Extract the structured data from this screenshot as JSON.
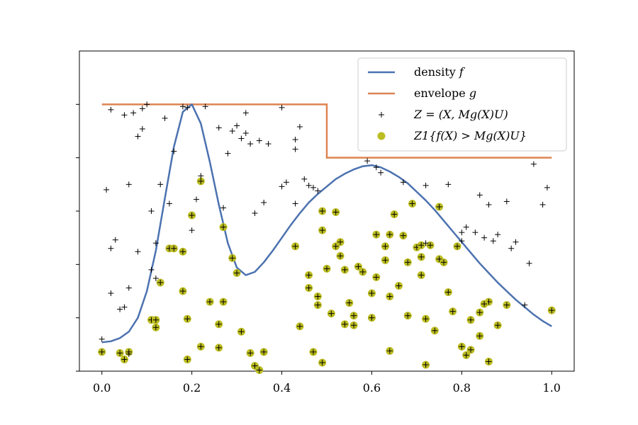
{
  "chart_data": {
    "type": "scatter",
    "title": "",
    "xlabel": "",
    "ylabel": "",
    "xlim": [
      -0.05,
      1.05
    ],
    "ylim": [
      0,
      3.0
    ],
    "x_ticks": [
      0.0,
      0.2,
      0.4,
      0.6,
      0.8,
      1.0
    ],
    "x_tick_labels": [
      "0.0",
      "0.2",
      "0.4",
      "0.6",
      "0.8",
      "1.0"
    ],
    "y_ticks": [
      0.0,
      0.5,
      1.0,
      1.5,
      2.0,
      2.5
    ],
    "grid": false,
    "legend_position": "top-right",
    "colors": {
      "density": "#4c72b0",
      "envelope": "#dd8452",
      "points": "#000000",
      "accepted": "#bcbd22"
    },
    "series": [
      {
        "name": "density f",
        "kind": "line",
        "x": [
          0.0,
          0.02,
          0.04,
          0.06,
          0.08,
          0.1,
          0.12,
          0.14,
          0.16,
          0.18,
          0.2,
          0.22,
          0.24,
          0.26,
          0.28,
          0.3,
          0.32,
          0.34,
          0.36,
          0.38,
          0.4,
          0.42,
          0.44,
          0.46,
          0.48,
          0.5,
          0.52,
          0.54,
          0.56,
          0.58,
          0.6,
          0.62,
          0.64,
          0.66,
          0.68,
          0.7,
          0.72,
          0.74,
          0.76,
          0.78,
          0.8,
          0.82,
          0.84,
          0.86,
          0.88,
          0.9,
          0.92,
          0.94,
          0.96,
          0.98,
          1.0
        ],
        "y": [
          0.27,
          0.28,
          0.31,
          0.37,
          0.5,
          0.75,
          1.13,
          1.62,
          2.1,
          2.43,
          2.5,
          2.32,
          1.96,
          1.56,
          1.2,
          0.97,
          0.9,
          0.93,
          1.02,
          1.13,
          1.25,
          1.37,
          1.48,
          1.58,
          1.66,
          1.73,
          1.8,
          1.85,
          1.89,
          1.92,
          1.93,
          1.91,
          1.87,
          1.82,
          1.76,
          1.68,
          1.6,
          1.51,
          1.41,
          1.31,
          1.21,
          1.11,
          1.01,
          0.92,
          0.83,
          0.75,
          0.67,
          0.6,
          0.53,
          0.47,
          0.42
        ]
      },
      {
        "name": "envelope g",
        "kind": "step",
        "x": [
          0.0,
          0.5,
          0.5,
          1.0
        ],
        "y": [
          2.5,
          2.5,
          2.0,
          2.0
        ]
      },
      {
        "name": "Z = (X, Mg(X)U)",
        "kind": "scatter",
        "marker": "+",
        "points": [
          [
            0.0,
            0.3
          ],
          [
            0.01,
            1.7
          ],
          [
            0.02,
            2.45
          ],
          [
            0.02,
            1.15
          ],
          [
            0.02,
            0.73
          ],
          [
            0.03,
            1.23
          ],
          [
            0.04,
            0.58
          ],
          [
            0.05,
            0.6
          ],
          [
            0.05,
            2.4
          ],
          [
            0.06,
            1.75
          ],
          [
            0.06,
            0.78
          ],
          [
            0.06,
            0.16
          ],
          [
            0.07,
            2.42
          ],
          [
            0.08,
            1.12
          ],
          [
            0.08,
            2.2
          ],
          [
            0.09,
            2.46
          ],
          [
            0.09,
            2.27
          ],
          [
            0.1,
            2.5
          ],
          [
            0.11,
            1.5
          ],
          [
            0.11,
            0.95
          ],
          [
            0.12,
            1.2
          ],
          [
            0.12,
            0.87
          ],
          [
            0.13,
            1.75
          ],
          [
            0.14,
            2.37
          ],
          [
            0.15,
            1.57
          ],
          [
            0.16,
            2.06
          ],
          [
            0.18,
            2.48
          ],
          [
            0.19,
            2.47
          ],
          [
            0.2,
            1.32
          ],
          [
            0.21,
            1.61
          ],
          [
            0.22,
            1.83
          ],
          [
            0.23,
            2.48
          ],
          [
            0.26,
            2.28
          ],
          [
            0.27,
            1.53
          ],
          [
            0.28,
            2.04
          ],
          [
            0.29,
            2.25
          ],
          [
            0.3,
            2.3
          ],
          [
            0.31,
            2.18
          ],
          [
            0.32,
            2.42
          ],
          [
            0.32,
            2.23
          ],
          [
            0.33,
            2.13
          ],
          [
            0.34,
            1.48
          ],
          [
            0.35,
            2.16
          ],
          [
            0.36,
            1.58
          ],
          [
            0.37,
            2.13
          ],
          [
            0.4,
            2.47
          ],
          [
            0.4,
            1.73
          ],
          [
            0.41,
            1.77
          ],
          [
            0.43,
            1.57
          ],
          [
            0.43,
            2.08
          ],
          [
            0.43,
            2.17
          ],
          [
            0.44,
            2.29
          ],
          [
            0.45,
            1.8
          ],
          [
            0.46,
            1.74
          ],
          [
            0.47,
            1.72
          ],
          [
            0.48,
            1.69
          ],
          [
            0.59,
            1.97
          ],
          [
            0.61,
            1.91
          ],
          [
            0.62,
            1.86
          ],
          [
            0.67,
            1.77
          ],
          [
            0.72,
            1.74
          ],
          [
            0.77,
            1.75
          ],
          [
            0.8,
            1.22
          ],
          [
            0.81,
            1.35
          ],
          [
            0.84,
            1.65
          ],
          [
            0.86,
            1.56
          ],
          [
            0.87,
            1.22
          ],
          [
            0.9,
            1.59
          ],
          [
            0.91,
            1.15
          ],
          [
            0.92,
            1.21
          ],
          [
            0.94,
            0.62
          ],
          [
            0.95,
            1.01
          ],
          [
            0.96,
            1.94
          ],
          [
            0.98,
            1.56
          ],
          [
            0.99,
            1.72
          ],
          [
            0.72,
            1.2
          ],
          [
            0.8,
            1.3
          ],
          [
            0.85,
            1.25
          ],
          [
            0.88,
            1.28
          ],
          [
            0.83,
            1.3
          ]
        ]
      },
      {
        "name": "Z1{f(X) > Mg(X)U}",
        "kind": "scatter",
        "marker": "o",
        "points": [
          [
            0.0,
            0.18
          ],
          [
            0.04,
            0.17
          ],
          [
            0.05,
            0.11
          ],
          [
            0.06,
            0.18
          ],
          [
            0.11,
            0.48
          ],
          [
            0.12,
            0.48
          ],
          [
            0.12,
            0.41
          ],
          [
            0.13,
            0.83
          ],
          [
            0.15,
            1.15
          ],
          [
            0.16,
            1.15
          ],
          [
            0.18,
            1.12
          ],
          [
            0.18,
            0.75
          ],
          [
            0.19,
            0.11
          ],
          [
            0.19,
            0.49
          ],
          [
            0.2,
            1.46
          ],
          [
            0.22,
            1.78
          ],
          [
            0.22,
            0.23
          ],
          [
            0.24,
            0.65
          ],
          [
            0.26,
            0.44
          ],
          [
            0.26,
            0.22
          ],
          [
            0.27,
            1.35
          ],
          [
            0.27,
            0.65
          ],
          [
            0.3,
            0.92
          ],
          [
            0.31,
            0.37
          ],
          [
            0.33,
            0.17
          ],
          [
            0.34,
            0.05
          ],
          [
            0.35,
            0.01
          ],
          [
            0.36,
            0.18
          ],
          [
            0.44,
            0.42
          ],
          [
            0.46,
            0.9
          ],
          [
            0.46,
            0.78
          ],
          [
            0.47,
            0.18
          ],
          [
            0.48,
            0.7
          ],
          [
            0.48,
            0.62
          ],
          [
            0.49,
            0.08
          ],
          [
            0.49,
            1.5
          ],
          [
            0.49,
            1.32
          ],
          [
            0.5,
            0.96
          ],
          [
            0.52,
            1.17
          ],
          [
            0.53,
            1.21
          ],
          [
            0.53,
            1.08
          ],
          [
            0.54,
            0.95
          ],
          [
            0.54,
            0.44
          ],
          [
            0.56,
            0.43
          ],
          [
            0.57,
            0.98
          ],
          [
            0.58,
            0.93
          ],
          [
            0.6,
            0.73
          ],
          [
            0.6,
            0.5
          ],
          [
            0.61,
            0.88
          ],
          [
            0.61,
            1.28
          ],
          [
            0.63,
            1.17
          ],
          [
            0.63,
            1.04
          ],
          [
            0.64,
            1.28
          ],
          [
            0.64,
            0.7
          ],
          [
            0.64,
            0.19
          ],
          [
            0.66,
            0.8
          ],
          [
            0.67,
            1.27
          ],
          [
            0.68,
            1.02
          ],
          [
            0.7,
            1.16
          ],
          [
            0.71,
            0.9
          ],
          [
            0.71,
            1.07
          ],
          [
            0.71,
            1.18
          ],
          [
            0.72,
            0.49
          ],
          [
            0.72,
            0.06
          ],
          [
            0.73,
            1.18
          ],
          [
            0.75,
            1.05
          ],
          [
            0.75,
            1.54
          ],
          [
            0.76,
            1.02
          ],
          [
            0.77,
            0.74
          ],
          [
            0.78,
            0.56
          ],
          [
            0.8,
            0.23
          ],
          [
            0.81,
            0.15
          ],
          [
            0.82,
            0.48
          ],
          [
            0.84,
            0.33
          ],
          [
            0.84,
            0.55
          ],
          [
            0.86,
            0.65
          ],
          [
            0.86,
            0.09
          ],
          [
            0.88,
            0.43
          ],
          [
            0.9,
            0.62
          ],
          [
            1.0,
            0.57
          ],
          [
            0.29,
            1.06
          ],
          [
            0.43,
            1.17
          ],
          [
            0.51,
            0.54
          ],
          [
            0.55,
            0.64
          ],
          [
            0.74,
            0.38
          ],
          [
            0.82,
            0.2
          ],
          [
            0.85,
            0.63
          ],
          [
            0.79,
            1.17
          ],
          [
            0.69,
            1.57
          ],
          [
            0.65,
            1.47
          ],
          [
            0.56,
            0.52
          ],
          [
            0.68,
            0.52
          ],
          [
            0.52,
            1.49
          ]
        ]
      }
    ],
    "legend": [
      {
        "label_prefix": "density ",
        "label_math": "f",
        "kind": "line",
        "color_key": "density"
      },
      {
        "label_prefix": "envelope ",
        "label_math": "g",
        "kind": "line",
        "color_key": "envelope"
      },
      {
        "label_prefix": "",
        "label_math": "Z = (X, Mg(X)U)",
        "kind": "plus",
        "color_key": "points"
      },
      {
        "label_prefix": "",
        "label_math": "Z1{f(X) > Mg(X)U}",
        "kind": "dot",
        "color_key": "accepted"
      }
    ]
  }
}
